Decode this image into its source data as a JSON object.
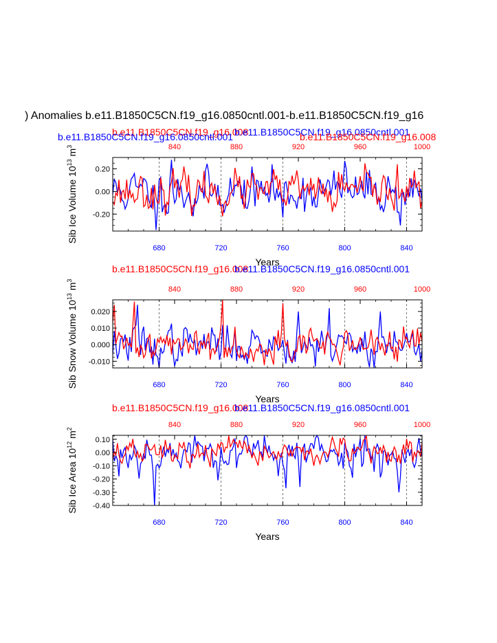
{
  "main_title": ") Anomalies b.e11.B1850C5CN.f19_g16.0850cntl.001-b.e11.B1850C5CN.f19_g16",
  "colors": {
    "blue": "#0000ff",
    "red": "#ff0000",
    "black": "#000000",
    "grid": "#555555"
  },
  "chart_data": [
    {
      "type": "line",
      "ylabel_main": "Sib Ice Volume 10",
      "ylabel_sup": "13",
      "ylabel_unit": " m",
      "ylabel_unit_sup": "3",
      "xlabel": "Years",
      "top_overlays": [
        {
          "text": "b.e11.B1850C5CN.f19_g16.008",
          "color": "red"
        },
        {
          "text": "b.e11.B1850C5CN.f19_g16.0850cntl.001",
          "color": "blue"
        },
        {
          "text": "b.e11.B1850C5CN.f19_g16.0850cntl.001",
          "color": "blue"
        },
        {
          "text": "b.e11.B1850C5CN.f19_g16.008",
          "color": "red"
        }
      ],
      "ylim": [
        -0.35,
        0.3
      ],
      "yticks": [
        0.2,
        0.0,
        -0.2
      ],
      "ytick_labels": [
        "0.20",
        "0.00",
        "-0.20"
      ],
      "bottom_xlim": [
        650,
        850
      ],
      "bottom_ticks": [
        680,
        720,
        760,
        800,
        840
      ],
      "top_xlim": [
        800,
        1000
      ],
      "top_ticks": [
        840,
        880,
        920,
        960,
        1000
      ],
      "series": [
        {
          "name": "b.e11.B1850C5CN.f19_g16.0850cntl.001",
          "color": "blue",
          "seed": 11,
          "std": 0.09,
          "peaks": [
            [
              688,
              0.28
            ],
            [
              678,
              -0.34
            ],
            [
              702,
              -0.22
            ],
            [
              760,
              -0.23
            ],
            [
              800,
              0.27
            ],
            [
              836,
              -0.3
            ]
          ]
        },
        {
          "name": "b.e11.B1850C5CN.f19_g16.008",
          "color": "red",
          "seed": 23,
          "std": 0.08,
          "peaks": [
            [
              721,
              -0.22
            ],
            [
              834,
              0.24
            ],
            [
              792,
              -0.18
            ]
          ]
        }
      ]
    },
    {
      "type": "line",
      "ylabel_main": "Sib Snow Volume 10",
      "ylabel_sup": "13",
      "ylabel_unit": " m",
      "ylabel_unit_sup": "3",
      "xlabel": "Years",
      "top_overlays": [
        {
          "text": "b.e11.B1850C5CN.f19_g16.008",
          "color": "red"
        },
        {
          "text": "b.e11.B1850C5CN.f19_g16.0850cntl.001",
          "color": "blue"
        }
      ],
      "ylim": [
        -0.014,
        0.027
      ],
      "yticks": [
        0.02,
        0.01,
        0.0,
        -0.01
      ],
      "ytick_labels": [
        "0.020",
        "0.010",
        "0.000",
        "-0.010"
      ],
      "bottom_xlim": [
        650,
        850
      ],
      "bottom_ticks": [
        680,
        720,
        760,
        800,
        840
      ],
      "top_xlim": [
        800,
        1000
      ],
      "top_ticks": [
        840,
        880,
        920,
        960,
        1000
      ],
      "series": [
        {
          "name": "b.e11.B1850C5CN.f19_g16.0850cntl.001",
          "color": "blue",
          "seed": 37,
          "std": 0.0055,
          "peaks": [
            [
              666,
              0.024
            ],
            [
              676,
              -0.012
            ],
            [
              770,
              0.02
            ],
            [
              790,
              0.022
            ],
            [
              823,
              0.02
            ]
          ]
        },
        {
          "name": "b.e11.B1850C5CN.f19_g16.008",
          "color": "red",
          "seed": 41,
          "std": 0.0045,
          "peaks": [
            [
              651,
              0.024
            ],
            [
              664,
              0.026
            ],
            [
              721,
              0.027
            ],
            [
              760,
              0.025
            ],
            [
              754,
              -0.012
            ]
          ]
        }
      ]
    },
    {
      "type": "line",
      "ylabel_main": "Sib Ice Area 10",
      "ylabel_sup": "12",
      "ylabel_unit": " m",
      "ylabel_unit_sup": "2",
      "xlabel": "Years",
      "top_overlays": [
        {
          "text": "b.e11.B1850C5CN.f19_g16.008",
          "color": "red"
        },
        {
          "text": "b.e11.B1850C5CN.f19_g16.0850cntl.001",
          "color": "blue"
        }
      ],
      "ylim": [
        -0.4,
        0.13
      ],
      "yticks": [
        0.1,
        0.0,
        -0.1,
        -0.2,
        -0.3,
        -0.4
      ],
      "ytick_labels": [
        "0.10",
        "0.00",
        "-0.10",
        "-0.20",
        "-0.30",
        "-0.40"
      ],
      "bottom_xlim": [
        650,
        850
      ],
      "bottom_ticks": [
        680,
        720,
        760,
        800,
        840
      ],
      "top_xlim": [
        800,
        1000
      ],
      "top_ticks": [
        840,
        880,
        920,
        960,
        1000
      ],
      "series": [
        {
          "name": "b.e11.B1850C5CN.f19_g16.0850cntl.001",
          "color": "blue",
          "seed": 53,
          "std": 0.07,
          "peaks": [
            [
              677,
              -0.4
            ],
            [
              654,
              -0.18
            ],
            [
              762,
              -0.27
            ],
            [
              771,
              -0.26
            ],
            [
              835,
              -0.3
            ]
          ]
        },
        {
          "name": "b.e11.B1850C5CN.f19_g16.008",
          "color": "red",
          "seed": 67,
          "std": 0.045,
          "peaks": [
            [
              700,
              -0.12
            ],
            [
              780,
              -0.1
            ]
          ]
        }
      ]
    }
  ]
}
